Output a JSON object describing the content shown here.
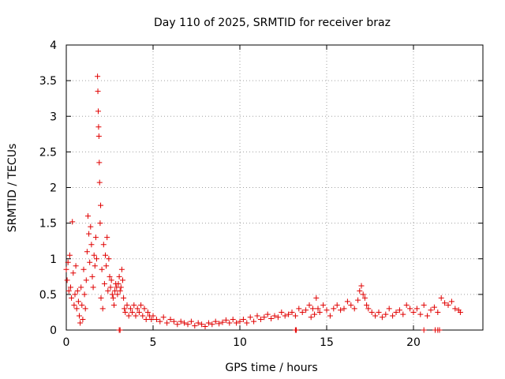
{
  "chart_data": {
    "type": "scatter",
    "title": "Day 110 of 2025, SRMTID for receiver braz",
    "xlabel": "GPS time / hours",
    "ylabel": "SRMTID / TECUs",
    "xlim": [
      0,
      24
    ],
    "ylim": [
      0,
      4
    ],
    "xticks": [
      0,
      5,
      10,
      15,
      20
    ],
    "xtick_labels": [
      "0",
      "5",
      "10",
      "15",
      "20"
    ],
    "yticks": [
      0,
      0.5,
      1,
      1.5,
      2,
      2.5,
      3,
      3.5,
      4
    ],
    "ytick_labels": [
      "0",
      "0.5",
      "1",
      "1.5",
      "2",
      "2.5",
      "3",
      "3.5",
      "4"
    ],
    "grid": true,
    "marker": "+",
    "color": "#e00000",
    "series": [
      {
        "name": "SRMTID",
        "points": [
          [
            0.0,
            0.85
          ],
          [
            0.05,
            0.7
          ],
          [
            0.1,
            0.95
          ],
          [
            0.15,
            0.55
          ],
          [
            0.2,
            1.05
          ],
          [
            0.25,
            0.6
          ],
          [
            0.3,
            0.45
          ],
          [
            0.35,
            1.52
          ],
          [
            0.4,
            0.8
          ],
          [
            0.45,
            0.35
          ],
          [
            0.5,
            0.5
          ],
          [
            0.55,
            0.9
          ],
          [
            0.6,
            0.3
          ],
          [
            0.65,
            0.55
          ],
          [
            0.7,
            0.4
          ],
          [
            0.75,
            0.2
          ],
          [
            0.8,
            0.1
          ],
          [
            0.85,
            0.6
          ],
          [
            0.9,
            0.35
          ],
          [
            0.95,
            0.15
          ],
          [
            1.0,
            0.85
          ],
          [
            1.05,
            0.5
          ],
          [
            1.1,
            0.3
          ],
          [
            1.15,
            0.7
          ],
          [
            1.2,
            1.1
          ],
          [
            1.25,
            1.6
          ],
          [
            1.3,
            1.35
          ],
          [
            1.35,
            0.95
          ],
          [
            1.4,
            1.45
          ],
          [
            1.45,
            1.2
          ],
          [
            1.5,
            0.75
          ],
          [
            1.55,
            0.6
          ],
          [
            1.6,
            1.05
          ],
          [
            1.65,
            0.9
          ],
          [
            1.7,
            1.3
          ],
          [
            1.75,
            1.0
          ],
          [
            1.8,
            3.56
          ],
          [
            1.82,
            3.35
          ],
          [
            1.84,
            3.07
          ],
          [
            1.86,
            2.85
          ],
          [
            1.88,
            2.72
          ],
          [
            1.9,
            2.35
          ],
          [
            1.92,
            2.07
          ],
          [
            1.95,
            1.5
          ],
          [
            1.98,
            1.75
          ],
          [
            2.0,
            0.45
          ],
          [
            2.05,
            0.85
          ],
          [
            2.1,
            0.3
          ],
          [
            2.15,
            1.2
          ],
          [
            2.2,
            0.65
          ],
          [
            2.25,
            1.05
          ],
          [
            2.3,
            0.9
          ],
          [
            2.35,
            1.3
          ],
          [
            2.4,
            0.55
          ],
          [
            2.45,
            1.0
          ],
          [
            2.5,
            0.75
          ],
          [
            2.55,
            0.6
          ],
          [
            2.6,
            0.7
          ],
          [
            2.65,
            0.5
          ],
          [
            2.7,
            0.45
          ],
          [
            2.75,
            0.35
          ],
          [
            2.8,
            0.55
          ],
          [
            2.85,
            0.65
          ],
          [
            2.9,
            0.6
          ],
          [
            2.95,
            0.5
          ],
          [
            3.0,
            0.65
          ],
          [
            3.05,
            0.75
          ],
          [
            3.1,
            0.55
          ],
          [
            3.15,
            0.6
          ],
          [
            3.2,
            0.85
          ],
          [
            3.25,
            0.7
          ],
          [
            3.3,
            0.45
          ],
          [
            3.35,
            0.3
          ],
          [
            3.4,
            0.25
          ],
          [
            3.5,
            0.35
          ],
          [
            3.6,
            0.2
          ],
          [
            3.7,
            0.3
          ],
          [
            3.8,
            0.25
          ],
          [
            3.9,
            0.35
          ],
          [
            4.0,
            0.2
          ],
          [
            4.1,
            0.3
          ],
          [
            4.2,
            0.25
          ],
          [
            4.3,
            0.35
          ],
          [
            4.4,
            0.2
          ],
          [
            4.5,
            0.3
          ],
          [
            4.6,
            0.15
          ],
          [
            4.7,
            0.25
          ],
          [
            4.8,
            0.2
          ],
          [
            4.9,
            0.15
          ],
          [
            5.0,
            0.2
          ],
          [
            5.2,
            0.15
          ],
          [
            5.4,
            0.12
          ],
          [
            5.6,
            0.18
          ],
          [
            5.8,
            0.1
          ],
          [
            6.0,
            0.15
          ],
          [
            6.2,
            0.12
          ],
          [
            6.4,
            0.08
          ],
          [
            6.6,
            0.12
          ],
          [
            6.8,
            0.1
          ],
          [
            7.0,
            0.08
          ],
          [
            7.2,
            0.12
          ],
          [
            7.4,
            0.06
          ],
          [
            7.6,
            0.1
          ],
          [
            7.8,
            0.08
          ],
          [
            8.0,
            0.05
          ],
          [
            8.2,
            0.1
          ],
          [
            8.4,
            0.08
          ],
          [
            8.6,
            0.12
          ],
          [
            8.8,
            0.09
          ],
          [
            9.0,
            0.11
          ],
          [
            9.2,
            0.14
          ],
          [
            9.4,
            0.1
          ],
          [
            9.6,
            0.15
          ],
          [
            9.8,
            0.1
          ],
          [
            10.0,
            0.12
          ],
          [
            10.2,
            0.15
          ],
          [
            10.4,
            0.1
          ],
          [
            10.6,
            0.18
          ],
          [
            10.8,
            0.12
          ],
          [
            11.0,
            0.2
          ],
          [
            11.2,
            0.15
          ],
          [
            11.4,
            0.18
          ],
          [
            11.6,
            0.22
          ],
          [
            11.8,
            0.16
          ],
          [
            12.0,
            0.2
          ],
          [
            12.2,
            0.18
          ],
          [
            12.4,
            0.25
          ],
          [
            12.6,
            0.2
          ],
          [
            12.8,
            0.22
          ],
          [
            13.0,
            0.25
          ],
          [
            13.2,
            0.2
          ],
          [
            13.4,
            0.3
          ],
          [
            13.6,
            0.25
          ],
          [
            13.8,
            0.28
          ],
          [
            14.0,
            0.35
          ],
          [
            14.1,
            0.18
          ],
          [
            14.2,
            0.3
          ],
          [
            14.3,
            0.22
          ],
          [
            14.4,
            0.45
          ],
          [
            14.5,
            0.3
          ],
          [
            14.6,
            0.25
          ],
          [
            14.8,
            0.35
          ],
          [
            15.0,
            0.28
          ],
          [
            15.2,
            0.2
          ],
          [
            15.4,
            0.3
          ],
          [
            15.6,
            0.35
          ],
          [
            15.8,
            0.28
          ],
          [
            16.0,
            0.3
          ],
          [
            16.2,
            0.4
          ],
          [
            16.4,
            0.35
          ],
          [
            16.6,
            0.3
          ],
          [
            16.8,
            0.42
          ],
          [
            16.9,
            0.55
          ],
          [
            17.0,
            0.62
          ],
          [
            17.1,
            0.5
          ],
          [
            17.2,
            0.45
          ],
          [
            17.3,
            0.35
          ],
          [
            17.4,
            0.3
          ],
          [
            17.6,
            0.25
          ],
          [
            17.8,
            0.2
          ],
          [
            18.0,
            0.25
          ],
          [
            18.2,
            0.18
          ],
          [
            18.4,
            0.22
          ],
          [
            18.6,
            0.3
          ],
          [
            18.8,
            0.2
          ],
          [
            19.0,
            0.25
          ],
          [
            19.2,
            0.28
          ],
          [
            19.4,
            0.22
          ],
          [
            19.6,
            0.35
          ],
          [
            19.8,
            0.3
          ],
          [
            20.0,
            0.25
          ],
          [
            20.2,
            0.3
          ],
          [
            20.4,
            0.22
          ],
          [
            20.6,
            0.35
          ],
          [
            20.8,
            0.2
          ],
          [
            21.0,
            0.28
          ],
          [
            21.2,
            0.32
          ],
          [
            21.4,
            0.25
          ],
          [
            21.6,
            0.45
          ],
          [
            21.8,
            0.38
          ],
          [
            22.0,
            0.35
          ],
          [
            22.2,
            0.4
          ],
          [
            22.4,
            0.3
          ],
          [
            22.6,
            0.28
          ],
          [
            22.7,
            0.25
          ],
          [
            3.05,
            0.0
          ],
          [
            3.1,
            0.0
          ],
          [
            13.2,
            0.0
          ],
          [
            13.25,
            0.0
          ],
          [
            20.6,
            0.0
          ],
          [
            21.25,
            0.0
          ],
          [
            21.4,
            0.0
          ],
          [
            21.5,
            0.0
          ]
        ]
      }
    ]
  }
}
